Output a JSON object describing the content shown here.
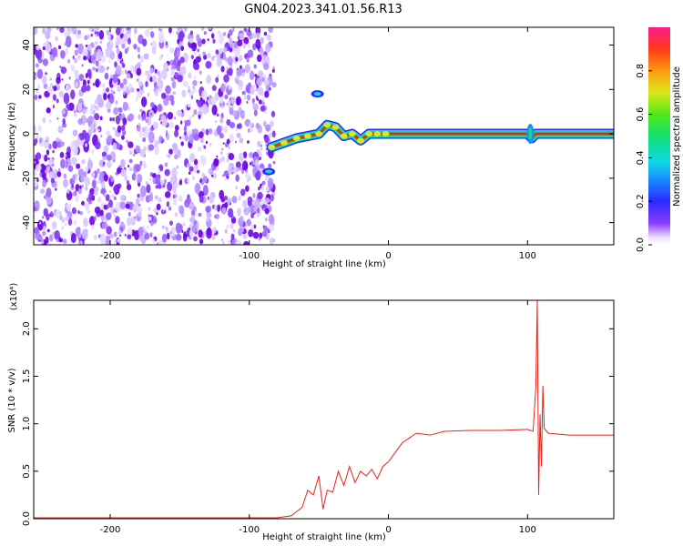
{
  "title": "GN04.2023.341.01.56.R13",
  "colors": {
    "frame": "#000000",
    "snr_line": "#e8241b",
    "noise_dark": "#6a00e8",
    "noise_light": "#d9c8ff",
    "signal_core": "#e8241b",
    "signal_edge": "#2ec94a"
  },
  "chart_data": [
    {
      "type": "heatmap",
      "name": "spectrogram",
      "xlabel": "Height of straight line (km)",
      "ylabel": "Frequency (Hz)",
      "xlim": [
        -255,
        162
      ],
      "ylim": [
        -50,
        48
      ],
      "x_ticks": [
        -200,
        -100,
        0,
        100
      ],
      "y_ticks": [
        -40,
        -20,
        0,
        20,
        40
      ],
      "x_tick_labels": [
        "-200",
        "-100",
        "0",
        "100"
      ],
      "y_tick_labels": [
        "-40",
        "-20",
        "0",
        "20",
        "40"
      ],
      "noise_region_km": [
        -255,
        -82
      ],
      "signal_track": {
        "x_km": [
          -84,
          -75,
          -66,
          -58,
          -50,
          -44,
          -38,
          -32,
          -26,
          -20,
          -14,
          -8,
          -2,
          10,
          60,
          100,
          103,
          106,
          162
        ],
        "freq_hz": [
          -6,
          -4,
          -2,
          -1,
          0,
          4,
          3,
          -1,
          0,
          -3,
          0,
          0,
          0,
          0,
          0,
          0,
          -2,
          0,
          0
        ]
      },
      "isolated_features": [
        {
          "x_km": -86,
          "freq_hz": -17
        },
        {
          "x_km": -51,
          "freq_hz": 18
        }
      ],
      "colorbar": {
        "label": "Normalized spectral amplitude",
        "range": [
          0,
          1
        ],
        "ticks": [
          0.0,
          0.2,
          0.4,
          0.6,
          0.8
        ],
        "tick_labels": [
          "0.0",
          "0.2",
          "0.4",
          "0.6",
          "0.8"
        ]
      }
    },
    {
      "type": "line",
      "name": "snr",
      "xlabel": "Height of straight line (km)",
      "ylabel": "SNR (10 * v/v)",
      "multiplier_label": "(x10⁴)",
      "xlim": [
        -255,
        162
      ],
      "ylim": [
        0,
        2.3
      ],
      "x_ticks": [
        -200,
        -100,
        0,
        100
      ],
      "y_ticks": [
        0.0,
        0.5,
        1.0,
        1.5,
        2.0
      ],
      "x_tick_labels": [
        "-200",
        "-100",
        "0",
        "100"
      ],
      "y_tick_labels": [
        "0.0",
        "0.5",
        "1.0",
        "1.5",
        "2.0"
      ],
      "series": [
        {
          "x": [
            -255,
            -200,
            -150,
            -100,
            -80,
            -70,
            -62,
            -58,
            -54,
            -50,
            -47,
            -44,
            -40,
            -36,
            -32,
            -28,
            -24,
            -20,
            -16,
            -12,
            -8,
            -4,
            0,
            5,
            10,
            15,
            20,
            30,
            40,
            60,
            80,
            100,
            104,
            106,
            107,
            108,
            109,
            110,
            111,
            112,
            115,
            130,
            162
          ],
          "y": [
            0.01,
            0.01,
            0.01,
            0.01,
            0.01,
            0.03,
            0.12,
            0.3,
            0.25,
            0.45,
            0.1,
            0.3,
            0.28,
            0.5,
            0.35,
            0.55,
            0.38,
            0.5,
            0.45,
            0.52,
            0.42,
            0.55,
            0.6,
            0.7,
            0.8,
            0.85,
            0.9,
            0.88,
            0.92,
            0.93,
            0.93,
            0.94,
            0.92,
            1.4,
            2.3,
            0.25,
            1.1,
            0.55,
            1.4,
            0.95,
            0.9,
            0.88,
            0.88
          ]
        }
      ]
    }
  ]
}
